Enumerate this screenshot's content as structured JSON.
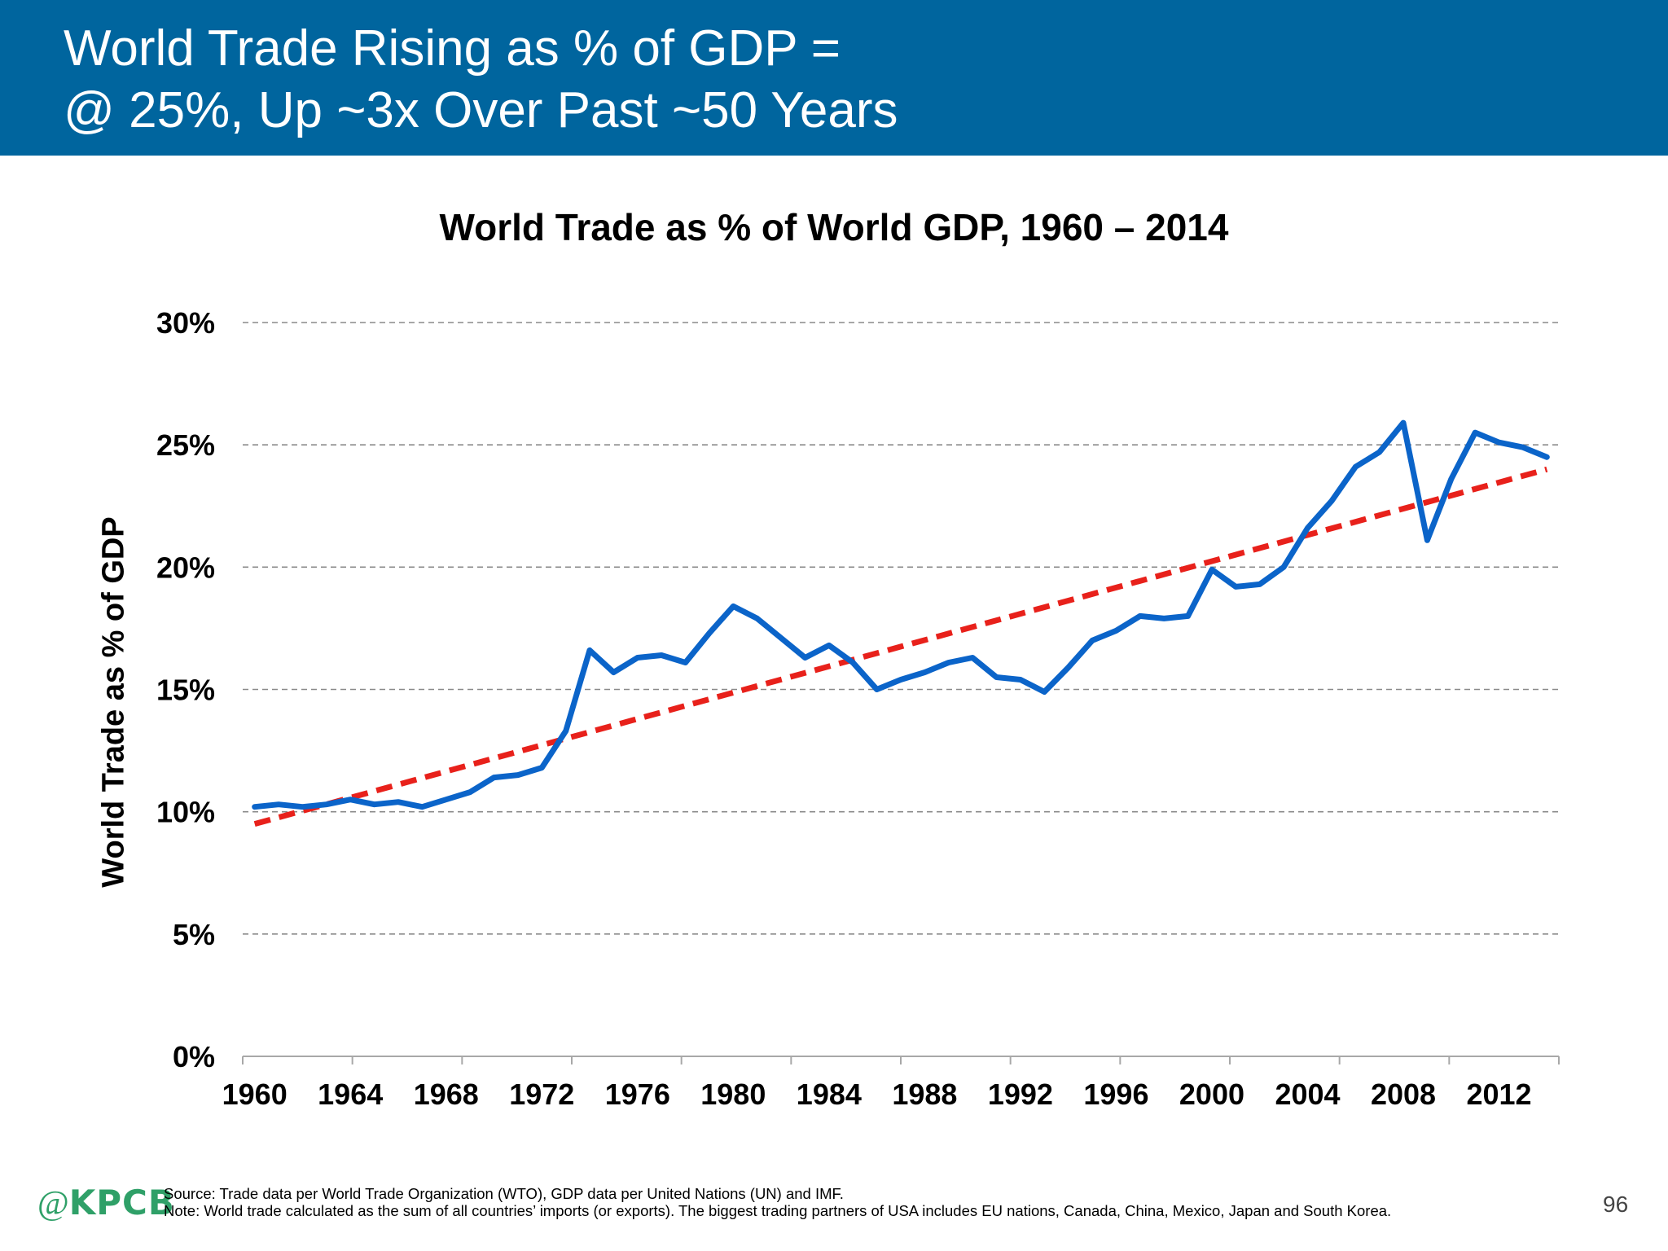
{
  "slide": {
    "title_line1": "World Trade Rising as % of GDP =",
    "title_line2": "@ 25%, Up ~3x Over Past ~50 Years",
    "page_number": "96",
    "colors": {
      "header": "#00659e",
      "logo": "#2fa068"
    }
  },
  "footer": {
    "logo_at": "@",
    "logo_brand": "KPCB",
    "source": "Source: Trade data per World Trade Organization (WTO), GDP data per United Nations (UN) and IMF.",
    "note": "Note: World trade calculated as the sum of all countries’ imports (or exports). The biggest trading partners of USA includes EU nations, Canada, China, Mexico, Japan and South Korea."
  },
  "chart_data": {
    "type": "line",
    "title": "World Trade as % of World GDP, 1960 – 2014",
    "ylabel": "World Trade as % of GDP",
    "xlabel": "",
    "ylim": [
      0,
      30
    ],
    "xlim": [
      1959.5,
      2014.5
    ],
    "yticks": [
      0,
      5,
      10,
      15,
      20,
      25,
      30
    ],
    "ytick_labels": [
      "0%",
      "5%",
      "10%",
      "15%",
      "20%",
      "25%",
      "30%"
    ],
    "xtick_labels": [
      "1960",
      "1964",
      "1968",
      "1972",
      "1976",
      "1980",
      "1984",
      "1988",
      "1992",
      "1996",
      "2000",
      "2004",
      "2008",
      "2012"
    ],
    "grid": "horizontal dashed",
    "legend": "none",
    "x": [
      1960,
      1961,
      1962,
      1963,
      1964,
      1965,
      1966,
      1967,
      1968,
      1969,
      1970,
      1971,
      1972,
      1973,
      1974,
      1975,
      1976,
      1977,
      1978,
      1979,
      1980,
      1981,
      1982,
      1983,
      1984,
      1985,
      1986,
      1987,
      1988,
      1989,
      1990,
      1991,
      1992,
      1993,
      1994,
      1995,
      1996,
      1997,
      1998,
      1999,
      2000,
      2001,
      2002,
      2003,
      2004,
      2005,
      2006,
      2007,
      2008,
      2009,
      2010,
      2011,
      2012,
      2013,
      2014
    ],
    "series": [
      {
        "style": "solid",
        "color": "#0b64c9",
        "values": [
          10.2,
          10.3,
          10.2,
          10.3,
          10.5,
          10.3,
          10.4,
          10.2,
          10.5,
          10.8,
          11.4,
          11.5,
          11.8,
          13.3,
          16.6,
          15.7,
          16.3,
          16.4,
          16.1,
          17.3,
          18.4,
          17.9,
          17.1,
          16.3,
          16.8,
          16.1,
          15.0,
          15.4,
          15.7,
          16.1,
          16.3,
          15.5,
          15.4,
          14.9,
          15.9,
          17.0,
          17.4,
          18.0,
          17.9,
          18.0,
          19.9,
          19.2,
          19.3,
          20.0,
          21.6,
          22.7,
          24.1,
          24.7,
          25.9,
          21.1,
          23.6,
          25.5,
          25.1,
          24.9,
          24.5
        ]
      },
      {
        "style": "dashed",
        "color": "#e8211b",
        "trend_start": 9.5,
        "trend_end": 24.0
      }
    ]
  }
}
